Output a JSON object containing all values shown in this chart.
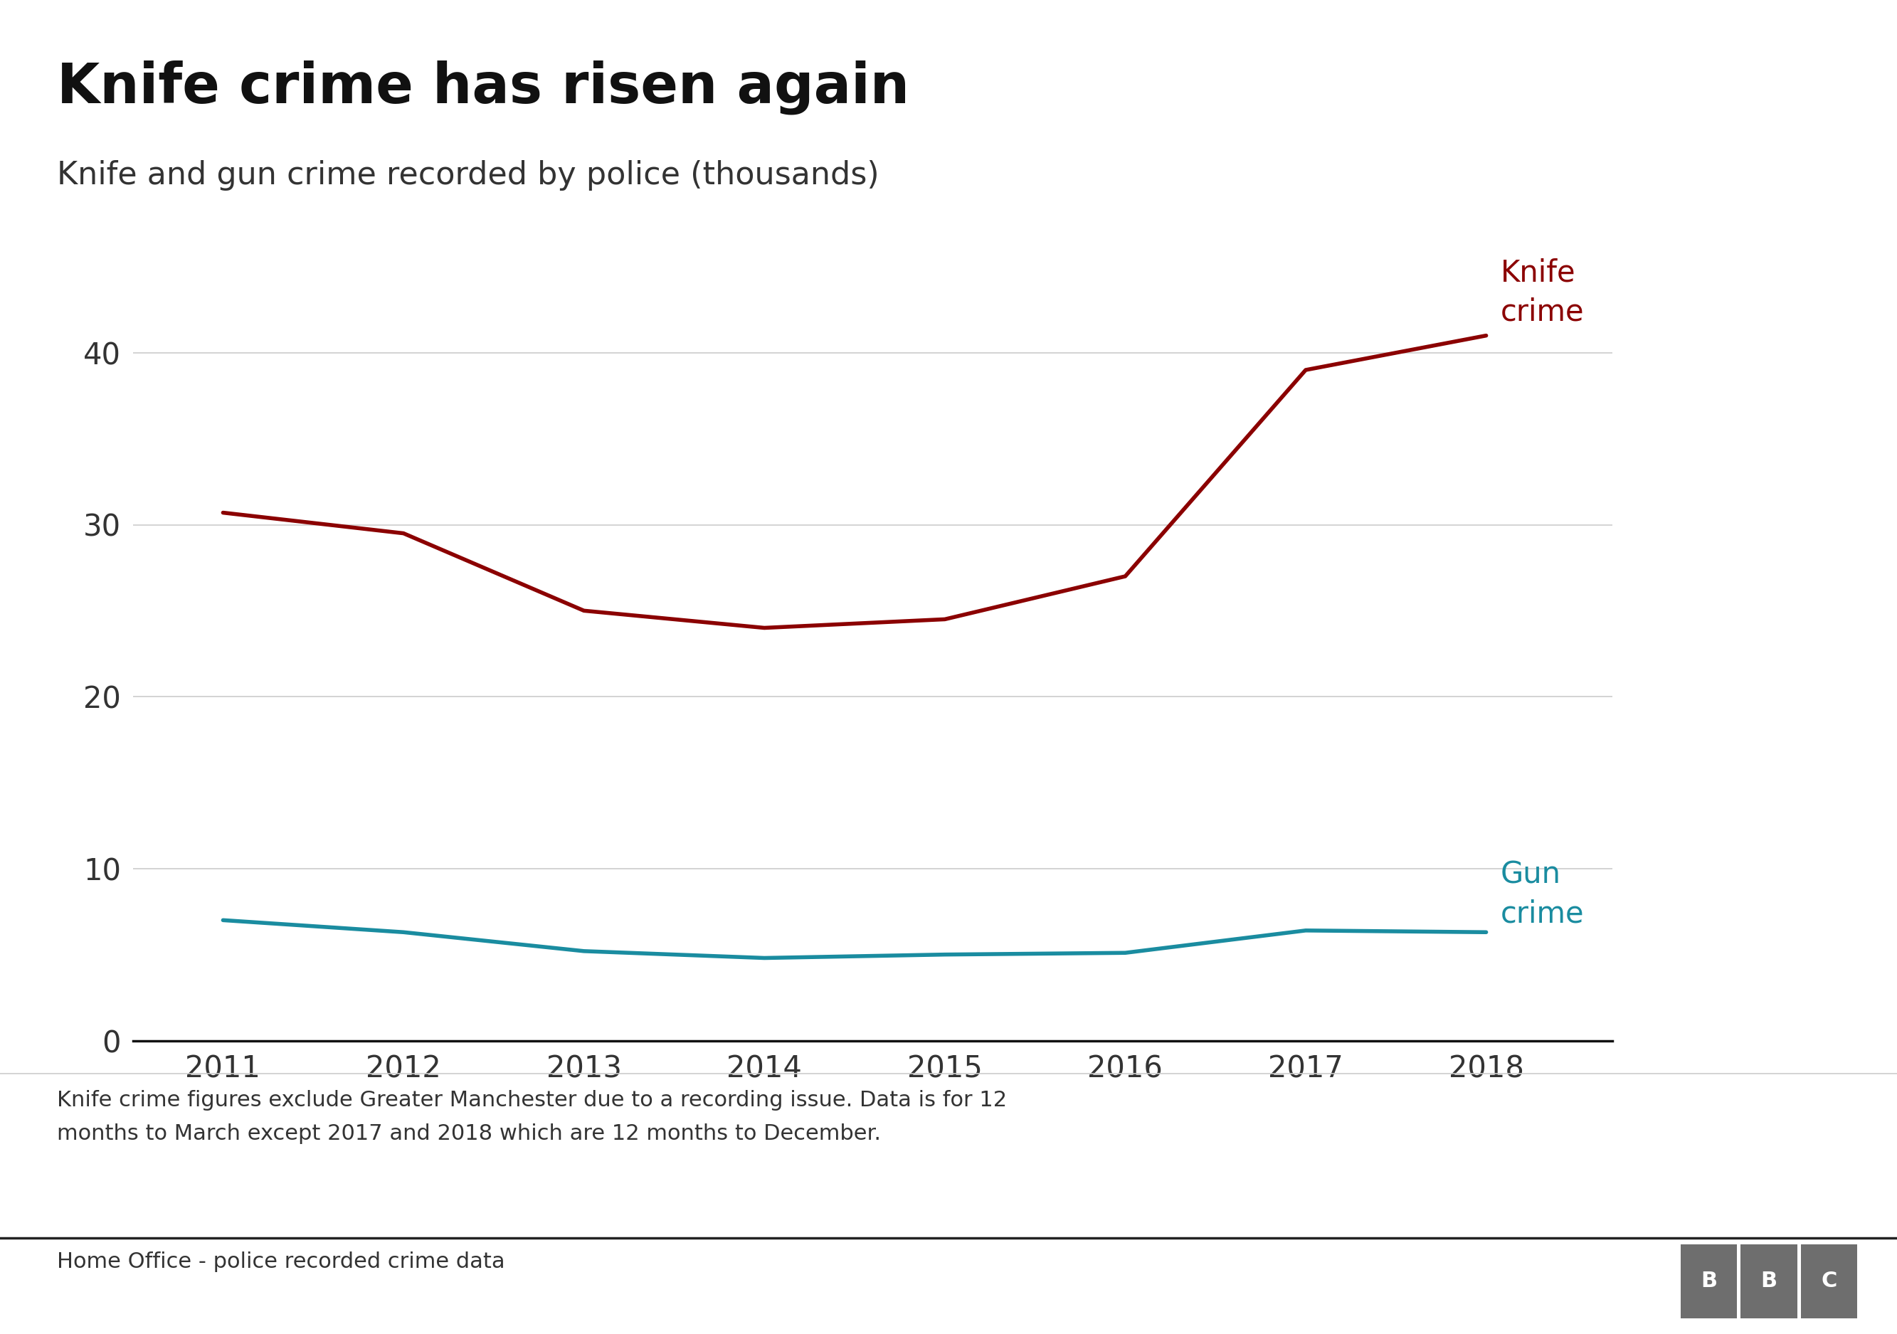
{
  "title": "Knife crime has risen again",
  "subtitle": "Knife and gun crime recorded by police (thousands)",
  "years": [
    2011,
    2012,
    2013,
    2014,
    2015,
    2016,
    2017,
    2018
  ],
  "knife_crime": [
    30.7,
    29.5,
    25.0,
    24.0,
    24.5,
    27.0,
    39.0,
    41.0
  ],
  "gun_crime": [
    7.0,
    6.3,
    5.2,
    4.8,
    5.0,
    5.1,
    6.4,
    6.3
  ],
  "knife_color": "#8B0000",
  "gun_color": "#1A8CA0",
  "background_color": "#ffffff",
  "title_fontsize": 56,
  "subtitle_fontsize": 32,
  "label_fontsize": 30,
  "tick_fontsize": 30,
  "footnote_fontsize": 22,
  "source_fontsize": 22,
  "footnote_text": "Knife crime figures exclude Greater Manchester due to a recording issue. Data is for 12\nmonths to March except 2017 and 2018 which are 12 months to December.",
  "source_text": "Home Office - police recorded crime data",
  "ylim": [
    0,
    45
  ],
  "yticks": [
    0,
    10,
    20,
    30,
    40
  ],
  "knife_label": "Knife\ncrime",
  "gun_label": "Gun\ncrime",
  "line_width": 4.0,
  "bbc_color": "#6e6e6e"
}
